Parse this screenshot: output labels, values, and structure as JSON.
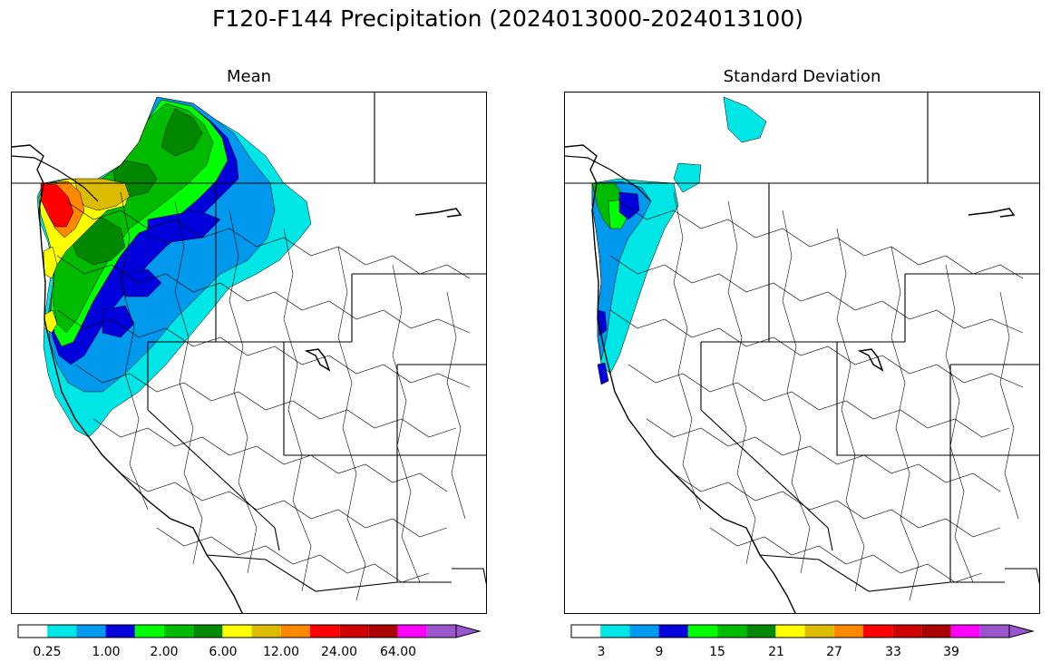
{
  "figure_title": "F120-F144 Precipitation (2024013000-2024013100)",
  "panels": [
    {
      "title": "Mean",
      "colorbar": {
        "colors": [
          "#ffffff",
          "#00e5e5",
          "#0099ee",
          "#0000dd",
          "#00ff00",
          "#00bb00",
          "#008800",
          "#ffff00",
          "#ddbb00",
          "#ff8800",
          "#ff0000",
          "#cc0000",
          "#aa0000",
          "#ff00ff",
          "#9955cc"
        ],
        "tick_labels": [
          "0.25",
          "1.00",
          "2.00",
          "6.00",
          "12.00",
          "24.00",
          "64.00"
        ]
      }
    },
    {
      "title": "Standard Deviation",
      "colorbar": {
        "colors": [
          "#ffffff",
          "#00e5e5",
          "#0099ee",
          "#0000dd",
          "#00ff00",
          "#00bb00",
          "#008800",
          "#ffff00",
          "#ddbb00",
          "#ff8800",
          "#ff0000",
          "#cc0000",
          "#aa0000",
          "#ff00ff",
          "#9955cc"
        ],
        "tick_labels": [
          "3",
          "9",
          "15",
          "21",
          "27",
          "33",
          "39"
        ]
      }
    }
  ]
}
